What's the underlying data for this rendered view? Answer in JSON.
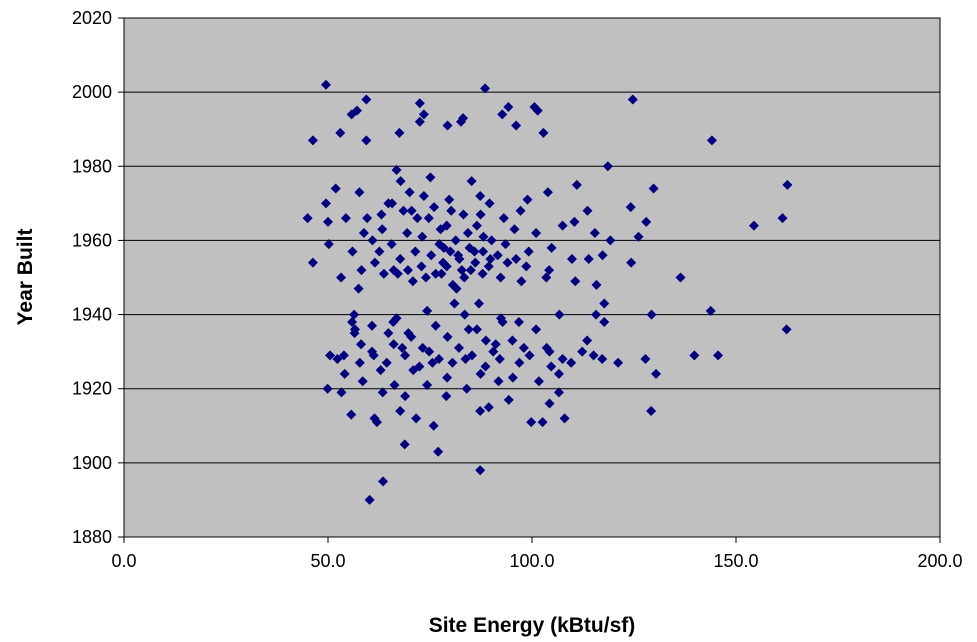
{
  "chart_data": {
    "type": "scatter",
    "title": "",
    "xlabel": "Site Energy (kBtu/sf)",
    "ylabel": "Year Built",
    "xlim": [
      0,
      200
    ],
    "ylim": [
      1880,
      2020
    ],
    "x_ticks": [
      "0.0",
      "50.0",
      "100.0",
      "150.0",
      "200.0"
    ],
    "y_ticks": [
      "1880",
      "1900",
      "1920",
      "1940",
      "1960",
      "1980",
      "2000",
      "2020"
    ],
    "grid": "horizontal",
    "legend": "none",
    "plot_background": "#c0c0c0",
    "marker_color": "#000080",
    "marker": "diamond",
    "series": [
      {
        "points": [
          [
            49.5,
            2002
          ],
          [
            88.5,
            2001
          ],
          [
            59.4,
            1998
          ],
          [
            124.7,
            1998
          ],
          [
            72.5,
            1997
          ],
          [
            94.2,
            1996
          ],
          [
            100.6,
            1996
          ],
          [
            57.1,
            1995
          ],
          [
            101.4,
            1995
          ],
          [
            73.5,
            1994
          ],
          [
            92.7,
            1994
          ],
          [
            55.8,
            1994
          ],
          [
            83.1,
            1993
          ],
          [
            82.6,
            1992
          ],
          [
            72.5,
            1992
          ],
          [
            79.3,
            1991
          ],
          [
            96.1,
            1991
          ],
          [
            53.0,
            1989
          ],
          [
            67.5,
            1989
          ],
          [
            102.8,
            1989
          ],
          [
            46.3,
            1987
          ],
          [
            59.4,
            1987
          ],
          [
            144.1,
            1987
          ],
          [
            118.6,
            1980
          ],
          [
            66.8,
            1979
          ],
          [
            67.8,
            1976
          ],
          [
            85.2,
            1976
          ],
          [
            75.1,
            1977
          ],
          [
            162.6,
            1975
          ],
          [
            111.0,
            1975
          ],
          [
            51.9,
            1974
          ],
          [
            129.8,
            1974
          ],
          [
            103.9,
            1973
          ],
          [
            70.0,
            1973
          ],
          [
            57.7,
            1973
          ],
          [
            87.3,
            1972
          ],
          [
            73.5,
            1972
          ],
          [
            79.7,
            1971
          ],
          [
            98.9,
            1971
          ],
          [
            64.8,
            1970
          ],
          [
            49.5,
            1970
          ],
          [
            45.0,
            1966
          ],
          [
            161.4,
            1966
          ],
          [
            128.0,
            1965
          ],
          [
            154.4,
            1964
          ],
          [
            50.0,
            1965
          ],
          [
            124.2,
            1969
          ],
          [
            113.6,
            1968
          ],
          [
            110.4,
            1965
          ],
          [
            107.5,
            1964
          ],
          [
            95.7,
            1963
          ],
          [
            87.4,
            1967
          ],
          [
            80.2,
            1968
          ],
          [
            74.7,
            1966
          ],
          [
            70.5,
            1968
          ],
          [
            63.1,
            1967
          ],
          [
            58.8,
            1962
          ],
          [
            54.4,
            1966
          ],
          [
            115.4,
            1962
          ],
          [
            126.1,
            1961
          ],
          [
            101.0,
            1962
          ],
          [
            93.5,
            1959
          ],
          [
            88.1,
            1961
          ],
          [
            84.3,
            1962
          ],
          [
            81.3,
            1960
          ],
          [
            77.6,
            1963
          ],
          [
            73.1,
            1961
          ],
          [
            69.4,
            1962
          ],
          [
            65.6,
            1959
          ],
          [
            60.9,
            1960
          ],
          [
            50.2,
            1959
          ],
          [
            104.8,
            1958
          ],
          [
            99.2,
            1957
          ],
          [
            96.1,
            1955
          ],
          [
            91.6,
            1956
          ],
          [
            85.9,
            1957
          ],
          [
            82.2,
            1955
          ],
          [
            78.4,
            1958
          ],
          [
            75.3,
            1956
          ],
          [
            71.4,
            1957
          ],
          [
            67.7,
            1955
          ],
          [
            62.6,
            1957
          ],
          [
            56.0,
            1957
          ],
          [
            113.9,
            1955
          ],
          [
            119.2,
            1960
          ],
          [
            124.3,
            1954
          ],
          [
            136.4,
            1950
          ],
          [
            117.3,
            1956
          ],
          [
            109.8,
            1955
          ],
          [
            104.2,
            1952
          ],
          [
            98.6,
            1953
          ],
          [
            94.0,
            1954
          ],
          [
            89.4,
            1953
          ],
          [
            86.1,
            1954
          ],
          [
            82.8,
            1952
          ],
          [
            79.1,
            1953
          ],
          [
            76.4,
            1951
          ],
          [
            72.9,
            1953
          ],
          [
            69.6,
            1952
          ],
          [
            66.1,
            1952
          ],
          [
            61.5,
            1954
          ],
          [
            58.2,
            1952
          ],
          [
            103.5,
            1950
          ],
          [
            97.4,
            1949
          ],
          [
            92.3,
            1950
          ],
          [
            87.9,
            1951
          ],
          [
            83.4,
            1950
          ],
          [
            80.6,
            1948
          ],
          [
            77.8,
            1951
          ],
          [
            74.0,
            1950
          ],
          [
            70.8,
            1949
          ],
          [
            67.1,
            1951
          ],
          [
            63.7,
            1951
          ],
          [
            53.2,
            1950
          ],
          [
            110.6,
            1949
          ],
          [
            115.8,
            1948
          ],
          [
            46.3,
            1954
          ],
          [
            81.5,
            1947
          ],
          [
            89.8,
            1955
          ],
          [
            57.5,
            1947
          ],
          [
            87.0,
            1943
          ],
          [
            81.0,
            1943
          ],
          [
            117.7,
            1943
          ],
          [
            143.8,
            1941
          ],
          [
            74.3,
            1941
          ],
          [
            115.7,
            1940
          ],
          [
            106.7,
            1940
          ],
          [
            56.4,
            1940
          ],
          [
            129.3,
            1940
          ],
          [
            83.5,
            1940
          ],
          [
            92.4,
            1939
          ],
          [
            66.8,
            1939
          ],
          [
            55.9,
            1938
          ],
          [
            96.8,
            1938
          ],
          [
            117.7,
            1938
          ],
          [
            60.8,
            1937
          ],
          [
            76.4,
            1937
          ],
          [
            86.5,
            1936
          ],
          [
            101.0,
            1936
          ],
          [
            162.4,
            1936
          ],
          [
            56.5,
            1935
          ],
          [
            64.8,
            1935
          ],
          [
            70.4,
            1934
          ],
          [
            79.3,
            1934
          ],
          [
            88.7,
            1933
          ],
          [
            95.2,
            1933
          ],
          [
            113.5,
            1933
          ],
          [
            58.1,
            1932
          ],
          [
            66.1,
            1932
          ],
          [
            73.2,
            1931
          ],
          [
            82.1,
            1931
          ],
          [
            90.5,
            1930
          ],
          [
            98.0,
            1931
          ],
          [
            104.3,
            1930
          ],
          [
            112.3,
            1930
          ],
          [
            53.9,
            1929
          ],
          [
            61.2,
            1929
          ],
          [
            68.9,
            1929
          ],
          [
            77.2,
            1928
          ],
          [
            85.3,
            1929
          ],
          [
            92.1,
            1928
          ],
          [
            99.4,
            1929
          ],
          [
            107.5,
            1928
          ],
          [
            117.2,
            1928
          ],
          [
            127.8,
            1928
          ],
          [
            139.8,
            1929
          ],
          [
            145.6,
            1929
          ],
          [
            50.5,
            1929
          ],
          [
            57.8,
            1927
          ],
          [
            64.4,
            1927
          ],
          [
            72.4,
            1926
          ],
          [
            80.5,
            1927
          ],
          [
            88.6,
            1926
          ],
          [
            96.9,
            1927
          ],
          [
            104.7,
            1926
          ],
          [
            115.1,
            1929
          ],
          [
            121.1,
            1927
          ],
          [
            52.3,
            1928
          ],
          [
            62.9,
            1925
          ],
          [
            70.9,
            1925
          ],
          [
            79.2,
            1923
          ],
          [
            87.4,
            1924
          ],
          [
            95.3,
            1923
          ],
          [
            101.7,
            1922
          ],
          [
            106.6,
            1924
          ],
          [
            130.4,
            1924
          ],
          [
            58.5,
            1922
          ],
          [
            66.3,
            1921
          ],
          [
            74.3,
            1921
          ],
          [
            84.0,
            1920
          ],
          [
            91.8,
            1922
          ],
          [
            49.9,
            1920
          ],
          [
            53.3,
            1919
          ],
          [
            63.4,
            1919
          ],
          [
            68.9,
            1918
          ],
          [
            94.3,
            1917
          ],
          [
            104.3,
            1916
          ],
          [
            106.6,
            1919
          ],
          [
            55.7,
            1913
          ],
          [
            61.4,
            1912
          ],
          [
            67.7,
            1914
          ],
          [
            75.9,
            1910
          ],
          [
            87.3,
            1914
          ],
          [
            99.8,
            1911
          ],
          [
            102.6,
            1911
          ],
          [
            108.0,
            1912
          ],
          [
            129.2,
            1914
          ],
          [
            62.0,
            1911
          ],
          [
            71.6,
            1912
          ],
          [
            89.4,
            1915
          ],
          [
            68.8,
            1905
          ],
          [
            77.0,
            1903
          ],
          [
            87.3,
            1898
          ],
          [
            63.5,
            1895
          ],
          [
            60.2,
            1890
          ],
          [
            79.0,
            1918
          ],
          [
            69.7,
            1935
          ],
          [
            103.6,
            1931
          ],
          [
            59.6,
            1966
          ],
          [
            63.3,
            1963
          ],
          [
            65.7,
            1970
          ],
          [
            68.5,
            1968
          ],
          [
            71.9,
            1966
          ],
          [
            76.0,
            1969
          ],
          [
            79.1,
            1964
          ],
          [
            83.2,
            1967
          ],
          [
            86.5,
            1964
          ],
          [
            89.6,
            1970
          ],
          [
            93.1,
            1966
          ],
          [
            97.2,
            1968
          ],
          [
            77.3,
            1959
          ],
          [
            80.0,
            1957
          ],
          [
            84.7,
            1958
          ],
          [
            88.0,
            1957
          ],
          [
            78.2,
            1954
          ],
          [
            81.9,
            1956
          ],
          [
            85.0,
            1952
          ],
          [
            90.1,
            1960
          ],
          [
            56.6,
            1936
          ],
          [
            60.8,
            1930
          ],
          [
            66.0,
            1938
          ],
          [
            74.8,
            1930
          ],
          [
            84.5,
            1936
          ],
          [
            92.8,
            1938
          ],
          [
            109.6,
            1927
          ],
          [
            54.1,
            1924
          ],
          [
            68.2,
            1931
          ],
          [
            75.6,
            1927
          ],
          [
            83.7,
            1928
          ],
          [
            91.1,
            1932
          ]
        ]
      }
    ]
  }
}
